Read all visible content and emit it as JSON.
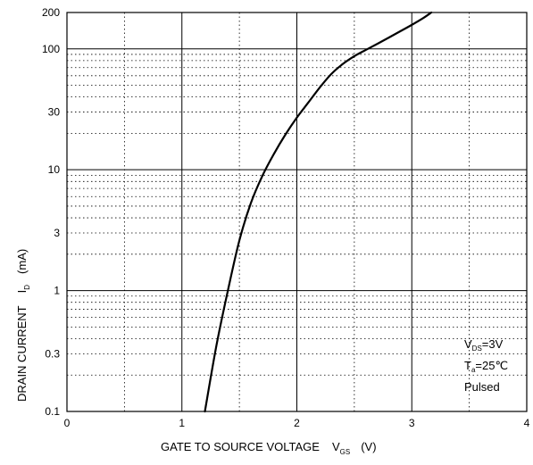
{
  "chart_data": {
    "type": "line",
    "xlabel": {
      "main": "GATE TO SOURCE VOLTAGE",
      "symbol": "V",
      "subscript": "GS",
      "unit": "(V)"
    },
    "ylabel": {
      "main": "DRAIN CURRENT",
      "symbol": "I",
      "subscript": "D",
      "unit": "(mA)"
    },
    "x_scale": "linear",
    "y_scale": "log",
    "xlim": [
      0,
      4
    ],
    "ylim": [
      0.1,
      200
    ],
    "x_ticks": [
      {
        "value": 0,
        "label": "0"
      },
      {
        "value": 1,
        "label": "1"
      },
      {
        "value": 2,
        "label": "2"
      },
      {
        "value": 3,
        "label": "3"
      },
      {
        "value": 4,
        "label": "4"
      }
    ],
    "y_ticks": [
      {
        "value": 0.1,
        "label": "0.1"
      },
      {
        "value": 0.3,
        "label": "0.3"
      },
      {
        "value": 1,
        "label": "1"
      },
      {
        "value": 3,
        "label": "3"
      },
      {
        "value": 10,
        "label": "10"
      },
      {
        "value": 30,
        "label": "30"
      },
      {
        "value": 100,
        "label": "100"
      },
      {
        "value": 200,
        "label": "200"
      }
    ],
    "grid": true,
    "series": [
      {
        "color": "#000000",
        "points": [
          [
            1.2,
            0.1
          ],
          [
            1.3,
            0.35
          ],
          [
            1.4,
            1.0
          ],
          [
            1.5,
            2.6
          ],
          [
            1.6,
            5.3
          ],
          [
            1.7,
            8.9
          ],
          [
            1.8,
            13.5
          ],
          [
            1.9,
            19.5
          ],
          [
            2.0,
            27
          ],
          [
            2.1,
            36
          ],
          [
            2.2,
            48
          ],
          [
            2.3,
            62
          ],
          [
            2.4,
            75
          ],
          [
            2.5,
            87
          ],
          [
            2.6,
            98
          ],
          [
            2.7,
            110
          ],
          [
            2.8,
            124
          ],
          [
            2.9,
            140
          ],
          [
            3.0,
            158
          ],
          [
            3.1,
            180
          ],
          [
            3.17,
            200
          ]
        ]
      }
    ],
    "annotation": {
      "line1_symbol": "V",
      "line1_subscript": "DS",
      "line1_value": "=3V",
      "line2_symbol": "T",
      "line2_subscript": "a",
      "line2_value": "=25℃",
      "line3": "Pulsed"
    }
  }
}
